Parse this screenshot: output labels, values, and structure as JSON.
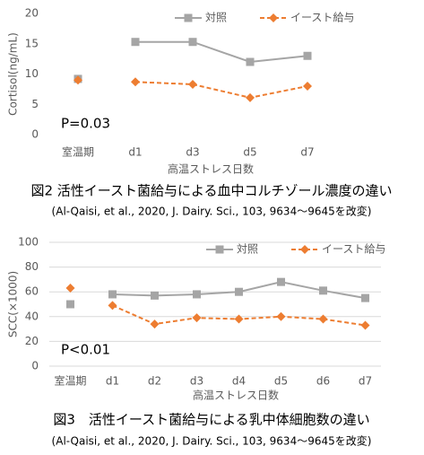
{
  "chart_data": [
    {
      "type": "line",
      "y_label": "Cortisol(ng/mL)",
      "x_label": "高温ストレス日数",
      "annotation": "P=0.03",
      "caption": "図2 活性イースト菌給与による血中コルチゾール濃度の違い",
      "source": "(Al-Qaisi, et al., 2020, J. Dairy. Sci., 103, 9634～9645を改変)",
      "categories": [
        "室温期",
        "d1",
        "d3",
        "d5",
        "d7"
      ],
      "series": [
        {
          "name": "対照",
          "color": "#a5a5a5",
          "marker": "square",
          "line_style": "solid",
          "values": [
            9.2,
            15.3,
            15.3,
            12.0,
            13.0
          ]
        },
        {
          "name": "イースト給与",
          "color": "#ed7d31",
          "marker": "diamond",
          "line_style": "dashed",
          "values": [
            9.0,
            8.7,
            8.3,
            6.1,
            8.0
          ]
        }
      ],
      "ylim": [
        0,
        20
      ],
      "yticks": [
        0,
        5,
        10,
        15,
        20
      ],
      "grid": false
    },
    {
      "type": "line",
      "y_label": "SCC(×1000)",
      "x_label": "高温ストレス日数",
      "annotation": "P<0.01",
      "caption": "図3　活性イースト菌給与による乳中体細胞数の違い",
      "source": "(Al-Qaisi, et al., 2020, J. Dairy. Sci., 103, 9634～9645を改変)",
      "categories": [
        "室温期",
        "d1",
        "d2",
        "d3",
        "d4",
        "d5",
        "d6",
        "d7"
      ],
      "series": [
        {
          "name": "対照",
          "color": "#a5a5a5",
          "marker": "square",
          "line_style": "solid",
          "values": [
            50,
            58,
            57,
            58,
            60,
            68,
            61,
            55
          ]
        },
        {
          "name": "イースト給与",
          "color": "#ed7d31",
          "marker": "diamond",
          "line_style": "dashed",
          "values": [
            63,
            49,
            34,
            39,
            38,
            40,
            38,
            33
          ]
        }
      ],
      "ylim": [
        0,
        100
      ],
      "yticks": [
        0,
        20,
        40,
        60,
        80,
        100
      ],
      "grid": true
    }
  ]
}
